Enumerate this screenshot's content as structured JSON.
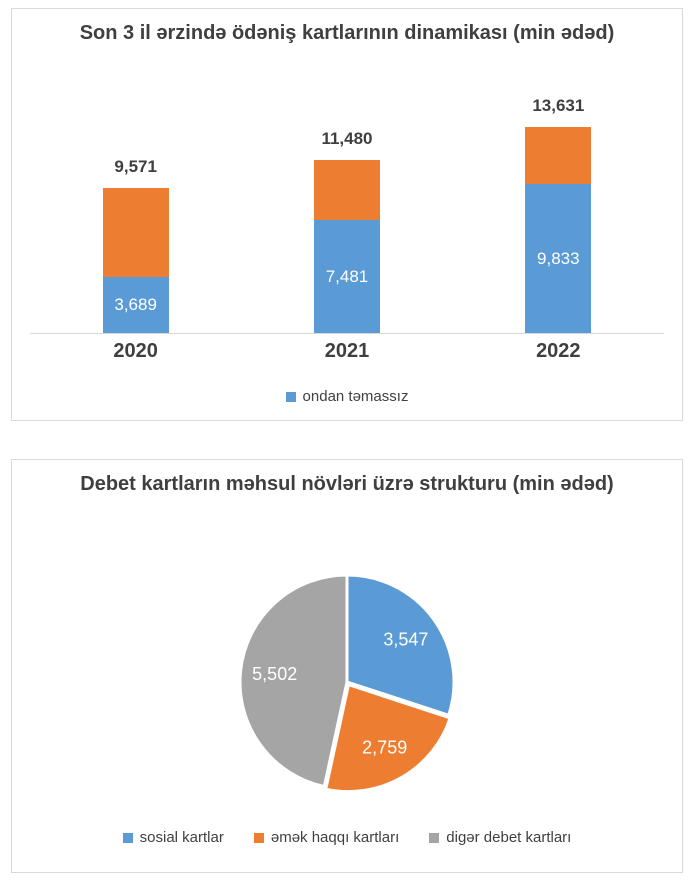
{
  "colors": {
    "blue": "#5B9BD5",
    "orange": "#ED7D31",
    "gray": "#A5A5A5",
    "axis_line": "#D9D9D9",
    "card_border": "#D9D9D9",
    "dark_text": "#3F3F3F",
    "white_label": "#FFFFFF"
  },
  "chart_data": [
    {
      "id": "payment-cards-dynamics",
      "type": "bar",
      "stacked": true,
      "title": "Son 3 il ərzində ödəniş kartlarının dinamikası (min ədəd)",
      "categories": [
        "2020",
        "2021",
        "2022"
      ],
      "totals": [
        9571,
        11480,
        13631
      ],
      "total_labels": [
        "9,571",
        "11,480",
        "13,631"
      ],
      "series": [
        {
          "key": "ondan-temassiz",
          "name": "ondan təmassız",
          "color": "#5B9BD5",
          "values": [
            3689,
            7481,
            9833
          ],
          "value_labels": [
            "3,689",
            "7,481",
            "9,833"
          ]
        },
        {
          "key": "remainder",
          "name": "",
          "color": "#ED7D31",
          "is_remainder_of_total": true
        }
      ],
      "legend": [
        {
          "label": "ondan təmassız",
          "color": "#5B9BD5"
        }
      ],
      "legend_position": "bottom",
      "grid": false,
      "value_labels_shown": "totals above bars, blue series inside bars"
    },
    {
      "id": "debit-cards-structure",
      "type": "pie",
      "title": "Debet kartların məhsul növləri üzrə strukturu (min ədəd)",
      "start_angle_deg": 0,
      "direction": "clockwise",
      "slices": [
        {
          "key": "sosial-kartlar",
          "label": "sosial kartlar",
          "value": 3547,
          "value_label": "3,547",
          "color": "#5B9BD5",
          "exploded": false
        },
        {
          "key": "emek-haqqi-kartlari",
          "label": "əmək haqqı kartları",
          "value": 2759,
          "value_label": "2,759",
          "color": "#ED7D31",
          "exploded": true
        },
        {
          "key": "diger-debet-kartlari",
          "label": "digər debet kartları",
          "value": 5502,
          "value_label": "5,502",
          "color": "#A5A5A5",
          "exploded": false
        }
      ],
      "legend_position": "bottom"
    }
  ]
}
